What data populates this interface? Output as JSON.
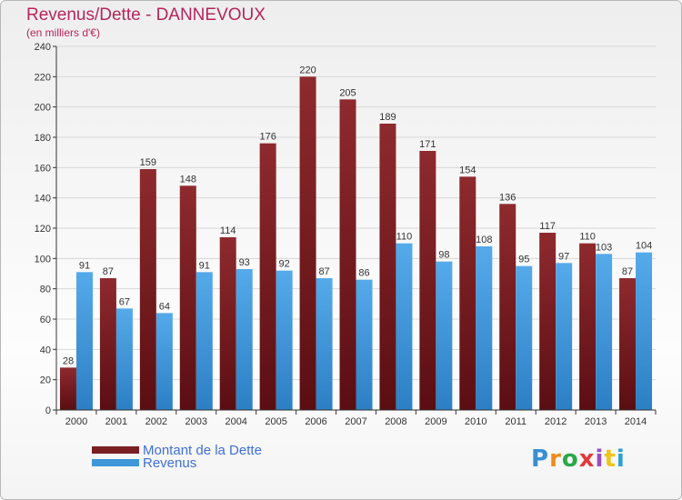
{
  "title": "Revenus/Dette - DANNEVOUX",
  "subtitle": "(en milliers d'€)",
  "logo": "Proxiti",
  "logo_colors": [
    "#3a8fd1",
    "#f08a1c",
    "#2aa84a",
    "#e03a3a",
    "#9b4cc0",
    "#f0c419",
    "#2aa0d6"
  ],
  "colors": {
    "dette": "#7a1f22",
    "revenus": "#3d97d8",
    "grid": "#d8d8d8",
    "axis": "#333333"
  },
  "legend": [
    {
      "label": "Montant de la Dette",
      "color": "#7a1f22"
    },
    {
      "label": "Revenus",
      "color": "#3d97d8"
    }
  ],
  "chart_data": {
    "type": "bar",
    "title": "Revenus/Dette - DANNEVOUX",
    "subtitle": "(en milliers d'€)",
    "categories": [
      "2000",
      "2001",
      "2002",
      "2003",
      "2004",
      "2005",
      "2006",
      "2007",
      "2008",
      "2009",
      "2010",
      "2011",
      "2012",
      "2013",
      "2014"
    ],
    "series": [
      {
        "name": "Montant de la Dette",
        "values": [
          28,
          87,
          159,
          148,
          114,
          176,
          220,
          205,
          189,
          171,
          154,
          136,
          117,
          110,
          87
        ]
      },
      {
        "name": "Revenus",
        "values": [
          91,
          67,
          64,
          91,
          93,
          92,
          87,
          86,
          110,
          98,
          108,
          95,
          97,
          103,
          104
        ]
      }
    ],
    "ylim": [
      0,
      240
    ],
    "yticks": [
      0,
      20,
      40,
      60,
      80,
      100,
      120,
      140,
      160,
      180,
      200,
      220,
      240
    ],
    "grid": true,
    "legend_position": "bottom-left",
    "data_labels": true
  }
}
